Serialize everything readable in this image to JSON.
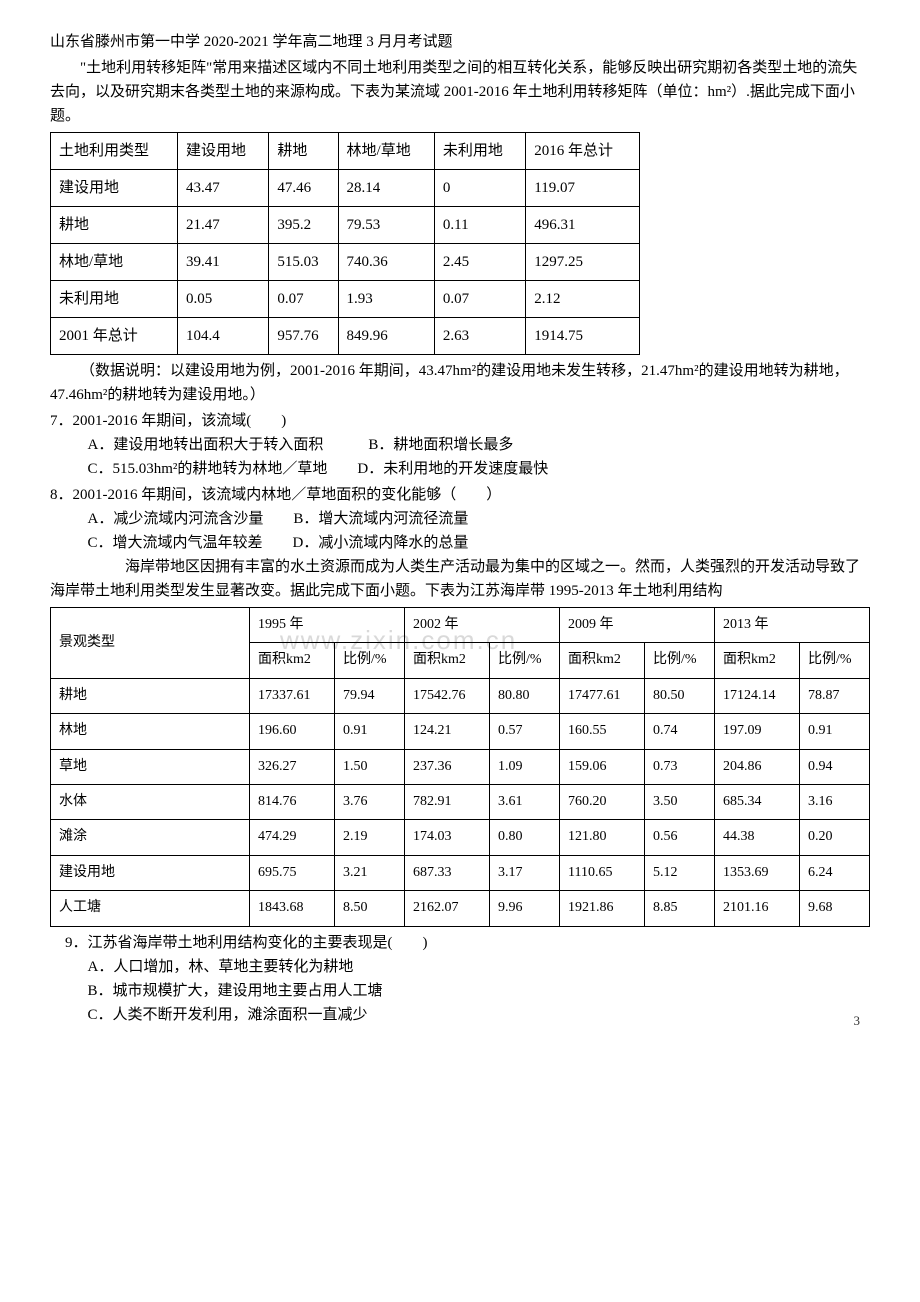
{
  "title": "山东省滕州市第一中学 2020-2021 学年高二地理 3 月月考试题",
  "intro1": "\"土地利用转移矩阵\"常用来描述区域内不同土地利用类型之间的相互转化关系，能够反映出研究期初各类型土地的流失去向，以及研究期末各类型土地的来源构成。下表为某流域 2001-2016 年土地利用转移矩阵（单位：hm²）.据此完成下面小题。",
  "table1": {
    "headers": [
      "土地利用类型",
      "建设用地",
      "耕地",
      "林地/草地",
      "未利用地",
      "2016 年总计"
    ],
    "rows": [
      [
        "建设用地",
        "43.47",
        "47.46",
        "28.14",
        "0",
        "119.07"
      ],
      [
        "耕地",
        "21.47",
        "395.2",
        "79.53",
        "0.11",
        "496.31"
      ],
      [
        "林地/草地",
        "39.41",
        "515.03",
        "740.36",
        "2.45",
        "1297.25"
      ],
      [
        "未利用地",
        "0.05",
        "0.07",
        "1.93",
        "0.07",
        "2.12"
      ],
      [
        "2001 年总计",
        "104.4",
        "957.76",
        "849.96",
        "2.63",
        "1914.75"
      ]
    ]
  },
  "note1": "（数据说明：以建设用地为例，2001-2016 年期间，43.47hm²的建设用地未发生转移，21.47hm²的建设用地转为耕地，47.46hm²的耕地转为建设用地。）",
  "q7": {
    "stem": "7．2001-2016 年期间，该流域(　　)",
    "opts": [
      "A．建设用地转出面积大于转入面积　　　B．耕地面积增长最多",
      "C．515.03hm²的耕地转为林地／草地　　D．未利用地的开发速度最快"
    ]
  },
  "q8": {
    "stem": "8．2001-2016 年期间，该流域内林地／草地面积的变化能够（　　）",
    "opts": [
      "A．减少流域内河流含沙量　　B．增大流域内河流径流量",
      "C．增大流域内气温年较差　　D．减小流域内降水的总量"
    ]
  },
  "intro2": "海岸带地区因拥有丰富的水土资源而成为人类生产活动最为集中的区域之一。然而，人类强烈的开发活动导致了海岸带土地利用类型发生显著改变。据此完成下面小题。下表为江苏海岸带 1995-2013 年土地利用结构",
  "table2": {
    "yearHeaders": [
      "1995 年",
      "2002 年",
      "2009 年",
      "2013 年"
    ],
    "subHeaders": [
      "面积km2",
      "比例/%"
    ],
    "rowLabel": "景观类型",
    "rows": [
      [
        "耕地",
        "17337.61",
        "79.94",
        "17542.76",
        "80.80",
        "17477.61",
        "80.50",
        "17124.14",
        "78.87"
      ],
      [
        "林地",
        "196.60",
        "0.91",
        "124.21",
        "0.57",
        "160.55",
        "0.74",
        "197.09",
        "0.91"
      ],
      [
        "草地",
        "326.27",
        "1.50",
        "237.36",
        "1.09",
        "159.06",
        "0.73",
        "204.86",
        "0.94"
      ],
      [
        "水体",
        "814.76",
        "3.76",
        "782.91",
        "3.61",
        "760.20",
        "3.50",
        "685.34",
        "3.16"
      ],
      [
        "滩涂",
        "474.29",
        "2.19",
        "174.03",
        "0.80",
        "121.80",
        "0.56",
        "44.38",
        "0.20"
      ],
      [
        "建设用地",
        "695.75",
        "3.21",
        "687.33",
        "3.17",
        "1110.65",
        "5.12",
        "1353.69",
        "6.24"
      ],
      [
        "人工塘",
        "1843.68",
        "8.50",
        "2162.07",
        "9.96",
        "1921.86",
        "8.85",
        "2101.16",
        "9.68"
      ]
    ]
  },
  "q9": {
    "stem": "9．江苏省海岸带土地利用结构变化的主要表现是(　　)",
    "opts": [
      "A．人口增加，林、草地主要转化为耕地",
      "B．城市规模扩大，建设用地主要占用人工塘",
      "C．人类不断开发利用，滩涂面积一直减少"
    ]
  },
  "watermark": "www.zixin.com.cn",
  "pageNum": "3"
}
